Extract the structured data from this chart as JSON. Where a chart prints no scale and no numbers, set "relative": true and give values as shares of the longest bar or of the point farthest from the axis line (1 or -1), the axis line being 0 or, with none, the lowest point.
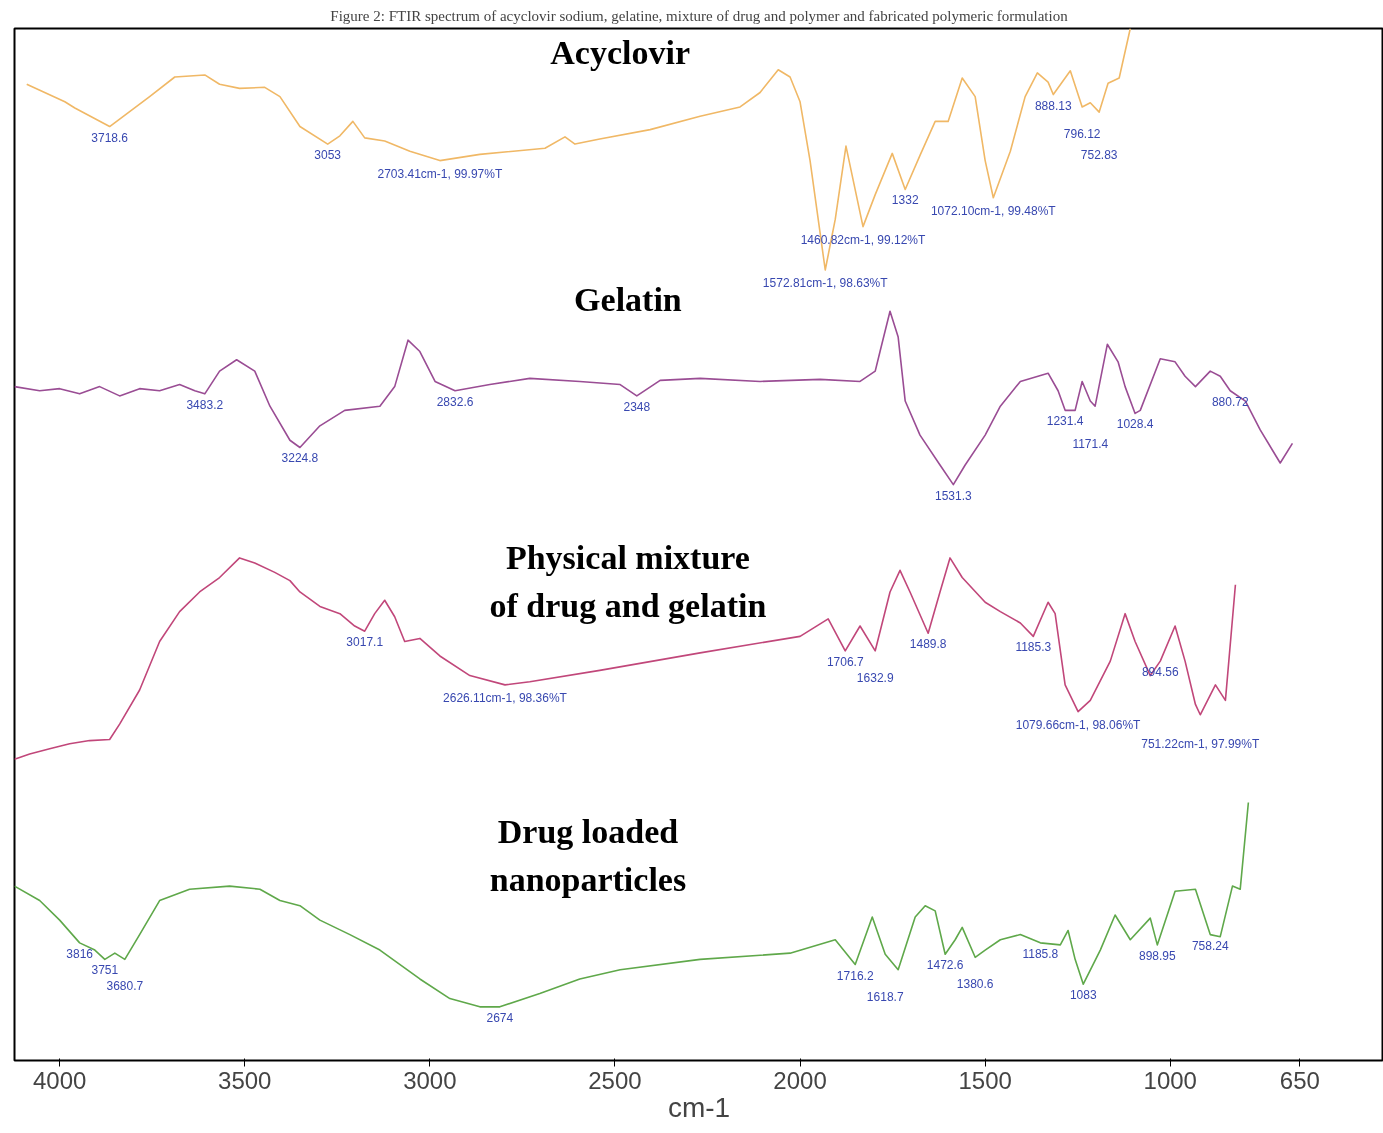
{
  "chart_data": {
    "type": "line",
    "relative": true,
    "title": "Figure 2: FTIR spectrum of acyclovir sodium, gelatine, mixture of drug and polymer and fabricated polymeric formulation",
    "xlabel": "cm-1",
    "xlim": [
      4122,
      424
    ],
    "xticks": [
      4000,
      3500,
      3000,
      2500,
      2000,
      1500,
      1000,
      650
    ],
    "grid": false,
    "marker": "none",
    "line_style": "solid",
    "series": [
      {
        "name": "Acyclovir",
        "color": "#f0b866",
        "x": [
          4089,
          3986,
          3959,
          3865,
          3757,
          3689,
          3608,
          3568,
          3514,
          3446,
          3405,
          3351,
          3276,
          3243,
          3208,
          3176,
          3122,
          3054,
          2973,
          2865,
          2689,
          2635,
          2608,
          2541,
          2405,
          2270,
          2162,
          2108,
          2059,
          2027,
          2000,
          1973,
          1932,
          1905,
          1876,
          1830,
          1797,
          1751,
          1716,
          1676,
          1635,
          1600,
          1562,
          1527,
          1500,
          1478,
          1432,
          1392,
          1359,
          1330,
          1316,
          1270,
          1238,
          1216,
          1192,
          1168,
          1138,
          1108
        ],
        "values": [
          0.946,
          0.929,
          0.923,
          0.905,
          0.934,
          0.953,
          0.955,
          0.946,
          0.942,
          0.943,
          0.934,
          0.905,
          0.888,
          0.896,
          0.91,
          0.894,
          0.891,
          0.881,
          0.872,
          0.878,
          0.884,
          0.895,
          0.888,
          0.893,
          0.902,
          0.915,
          0.924,
          0.938,
          0.96,
          0.953,
          0.929,
          0.872,
          0.766,
          0.815,
          0.886,
          0.808,
          0.839,
          0.879,
          0.844,
          0.877,
          0.91,
          0.91,
          0.952,
          0.934,
          0.872,
          0.836,
          0.881,
          0.934,
          0.957,
          0.948,
          0.936,
          0.959,
          0.924,
          0.928,
          0.919,
          0.947,
          0.952,
          1.0
        ]
      },
      {
        "name": "Gelatin",
        "color": "#9a4d94",
        "x": [
          4122,
          4054,
          4000,
          3946,
          3892,
          3838,
          3784,
          3730,
          3676,
          3635,
          3608,
          3568,
          3522,
          3473,
          3432,
          3378,
          3351,
          3297,
          3230,
          3135,
          3095,
          3059,
          3027,
          2986,
          2932,
          2838,
          2730,
          2595,
          2486,
          2441,
          2378,
          2270,
          2108,
          1946,
          1838,
          1797,
          1784,
          1757,
          1735,
          1716,
          1676,
          1622,
          1586,
          1554,
          1500,
          1459,
          1405,
          1330,
          1303,
          1284,
          1257,
          1238,
          1216,
          1203,
          1170,
          1141,
          1122,
          1095,
          1081,
          1027,
          987,
          960,
          932,
          892,
          865,
          838,
          797,
          757,
          703,
          670
        ],
        "values": [
          0.653,
          0.649,
          0.651,
          0.646,
          0.653,
          0.644,
          0.651,
          0.649,
          0.655,
          0.649,
          0.646,
          0.668,
          0.679,
          0.668,
          0.634,
          0.601,
          0.594,
          0.615,
          0.63,
          0.634,
          0.653,
          0.698,
          0.687,
          0.658,
          0.649,
          0.655,
          0.661,
          0.658,
          0.655,
          0.644,
          0.659,
          0.661,
          0.658,
          0.66,
          0.658,
          0.668,
          0.687,
          0.726,
          0.701,
          0.639,
          0.606,
          0.577,
          0.558,
          0.577,
          0.606,
          0.634,
          0.658,
          0.666,
          0.649,
          0.63,
          0.63,
          0.658,
          0.639,
          0.634,
          0.694,
          0.677,
          0.653,
          0.627,
          0.63,
          0.68,
          0.677,
          0.663,
          0.653,
          0.668,
          0.663,
          0.649,
          0.639,
          0.611,
          0.579,
          0.598
        ]
      },
      {
        "name": "Physical mixture of drug and gelatin",
        "color": "#c1477a",
        "x": [
          4122,
          4081,
          4027,
          3973,
          3919,
          3865,
          3838,
          3784,
          3730,
          3676,
          3622,
          3568,
          3514,
          3473,
          3419,
          3378,
          3351,
          3297,
          3243,
          3203,
          3176,
          3149,
          3122,
          3095,
          3068,
          3027,
          2973,
          2892,
          2797,
          2730,
          2541,
          2270,
          2000,
          1924,
          1878,
          1838,
          1797,
          1757,
          1730,
          1703,
          1654,
          1622,
          1595,
          1562,
          1500,
          1459,
          1405,
          1370,
          1330,
          1311,
          1284,
          1249,
          1216,
          1162,
          1122,
          1095,
          1054,
          1027,
          987,
          960,
          932,
          919,
          878,
          851,
          824
        ],
        "values": [
          0.292,
          0.297,
          0.302,
          0.307,
          0.31,
          0.311,
          0.326,
          0.359,
          0.406,
          0.435,
          0.454,
          0.468,
          0.487,
          0.482,
          0.473,
          0.465,
          0.454,
          0.44,
          0.433,
          0.421,
          0.416,
          0.433,
          0.446,
          0.43,
          0.406,
          0.409,
          0.392,
          0.373,
          0.364,
          0.367,
          0.378,
          0.395,
          0.411,
          0.428,
          0.397,
          0.421,
          0.397,
          0.454,
          0.475,
          0.454,
          0.414,
          0.454,
          0.487,
          0.468,
          0.444,
          0.435,
          0.424,
          0.411,
          0.444,
          0.433,
          0.364,
          0.338,
          0.349,
          0.387,
          0.433,
          0.406,
          0.373,
          0.387,
          0.421,
          0.387,
          0.345,
          0.335,
          0.364,
          0.349,
          0.461
        ]
      },
      {
        "name": "Drug loaded nanoparticles",
        "color": "#5fa84a",
        "x": [
          4122,
          4054,
          4000,
          3946,
          3905,
          3878,
          3851,
          3824,
          3784,
          3730,
          3649,
          3541,
          3459,
          3405,
          3351,
          3297,
          3216,
          3135,
          3027,
          2946,
          2865,
          2811,
          2703,
          2595,
          2486,
          2270,
          2027,
          1905,
          1851,
          1805,
          1770,
          1735,
          1689,
          1662,
          1635,
          1608,
          1581,
          1562,
          1527,
          1500,
          1459,
          1405,
          1351,
          1297,
          1276,
          1257,
          1235,
          1189,
          1149,
          1108,
          1054,
          1035,
          987,
          932,
          892,
          865,
          832,
          811,
          789
        ],
        "values": [
          0.169,
          0.155,
          0.136,
          0.114,
          0.107,
          0.098,
          0.104,
          0.098,
          0.122,
          0.155,
          0.166,
          0.169,
          0.166,
          0.155,
          0.15,
          0.136,
          0.122,
          0.107,
          0.079,
          0.06,
          0.052,
          0.052,
          0.065,
          0.079,
          0.088,
          0.098,
          0.104,
          0.117,
          0.093,
          0.139,
          0.103,
          0.088,
          0.139,
          0.15,
          0.145,
          0.103,
          0.117,
          0.129,
          0.1,
          0.107,
          0.117,
          0.122,
          0.114,
          0.112,
          0.126,
          0.098,
          0.074,
          0.107,
          0.141,
          0.117,
          0.138,
          0.112,
          0.164,
          0.166,
          0.122,
          0.12,
          0.169,
          0.166,
          0.25
        ]
      }
    ],
    "annotations": [
      {
        "text": "3718.6",
        "x": 3865,
        "y": 0.905
      },
      {
        "text": "3053",
        "x": 3276,
        "y": 0.888
      },
      {
        "text": "2703.41cm-1, 99.97%T",
        "x": 2973,
        "y": 0.872
      },
      {
        "text": "1572.81cm-1, 98.63%T",
        "x": 1932,
        "y": 0.766
      },
      {
        "text": "1460.82cm-1, 99.12%T",
        "x": 1830,
        "y": 0.808
      },
      {
        "text": "1332",
        "x": 1716,
        "y": 0.844
      },
      {
        "text": "1072.10cm-1, 99.48%T",
        "x": 1478,
        "y": 0.836
      },
      {
        "text": "888.13",
        "x": 1316,
        "y": 0.936
      },
      {
        "text": "796.12",
        "x": 1238,
        "y": 0.924
      },
      {
        "text": "752.83",
        "x": 1192,
        "y": 0.919
      },
      {
        "text": "3483.2",
        "x": 3608,
        "y": 0.646
      },
      {
        "text": "3224.8",
        "x": 3351,
        "y": 0.594
      },
      {
        "text": "2832.6",
        "x": 2932,
        "y": 0.649
      },
      {
        "text": "2348",
        "x": 2441,
        "y": 0.644
      },
      {
        "text": "1531.3",
        "x": 1586,
        "y": 0.558
      },
      {
        "text": "1231.4",
        "x": 1284,
        "y": 0.63
      },
      {
        "text": "1171.4",
        "x": 1216,
        "y": 0.639
      },
      {
        "text": "1028.4",
        "x": 1095,
        "y": 0.627
      },
      {
        "text": "880.72",
        "x": 838,
        "y": 0.649
      },
      {
        "text": "3017.1",
        "x": 3176,
        "y": 0.416
      },
      {
        "text": "2626.11cm-1, 98.36%T",
        "x": 2797,
        "y": 0.364
      },
      {
        "text": "1706.7",
        "x": 1878,
        "y": 0.397
      },
      {
        "text": "1632.9",
        "x": 1797,
        "y": 0.397
      },
      {
        "text": "1489.8",
        "x": 1654,
        "y": 0.414
      },
      {
        "text": "1185.3",
        "x": 1370,
        "y": 0.411
      },
      {
        "text": "1079.66cm-1, 98.06%T",
        "x": 1249,
        "y": 0.338
      },
      {
        "text": "894.56",
        "x": 1027,
        "y": 0.387
      },
      {
        "text": "751.22cm-1, 97.99%T",
        "x": 919,
        "y": 0.335
      },
      {
        "text": "3816",
        "x": 3946,
        "y": 0.114
      },
      {
        "text": "3751",
        "x": 3878,
        "y": 0.098
      },
      {
        "text": "3680.7",
        "x": 3824,
        "y": 0.098
      },
      {
        "text": "2674",
        "x": 2811,
        "y": 0.052
      },
      {
        "text": "1716.2",
        "x": 1851,
        "y": 0.093
      },
      {
        "text": "1618.7",
        "x": 1770,
        "y": 0.103
      },
      {
        "text": "1472.6",
        "x": 1608,
        "y": 0.103
      },
      {
        "text": "1380.6",
        "x": 1527,
        "y": 0.1
      },
      {
        "text": "1185.8",
        "x": 1351,
        "y": 0.114
      },
      {
        "text": "1083",
        "x": 1235,
        "y": 0.074
      },
      {
        "text": "898.95",
        "x": 1035,
        "y": 0.112
      },
      {
        "text": "758.24",
        "x": 892,
        "y": 0.122
      }
    ]
  }
}
